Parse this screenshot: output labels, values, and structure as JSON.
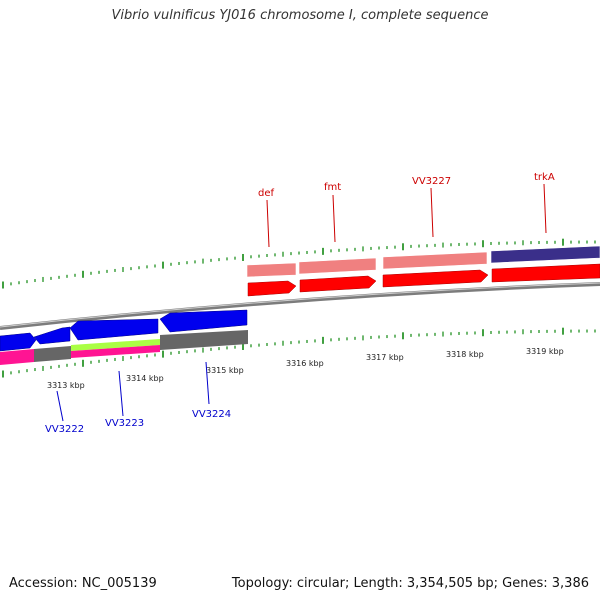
{
  "title": "Vibrio vulnificus YJ016 chromosome I, complete sequence",
  "footer": {
    "accession": "Accession: NC_005139",
    "topology": "Topology: circular; Length: 3,354,505 bp; Genes: 3,386"
  },
  "kbp_labels": [
    "3313 kbp",
    "3314 kbp",
    "3315 kbp",
    "3316 kbp",
    "3317 kbp",
    "3318 kbp",
    "3319 kbp"
  ],
  "genes_forward": [
    {
      "name": "def",
      "color": "#cc0000"
    },
    {
      "name": "fmt",
      "color": "#cc0000"
    },
    {
      "name": "VV3227",
      "color": "#cc0000"
    },
    {
      "name": "trkA",
      "color": "#cc0000"
    }
  ],
  "genes_reverse": [
    {
      "name": "VV3222",
      "color": "#0000cc"
    },
    {
      "name": "VV3223",
      "color": "#0000cc"
    },
    {
      "name": "VV3224",
      "color": "#0000cc"
    }
  ],
  "colors": {
    "forward_gene": "#ff0000",
    "forward_feature": "#f08080",
    "reverse_gene": "#0000ee",
    "backbone": "#8a8a8a",
    "tick": "#118811",
    "magenta": "#ff1493",
    "lime": "#aaff44",
    "navy": "#3a2f8a"
  }
}
